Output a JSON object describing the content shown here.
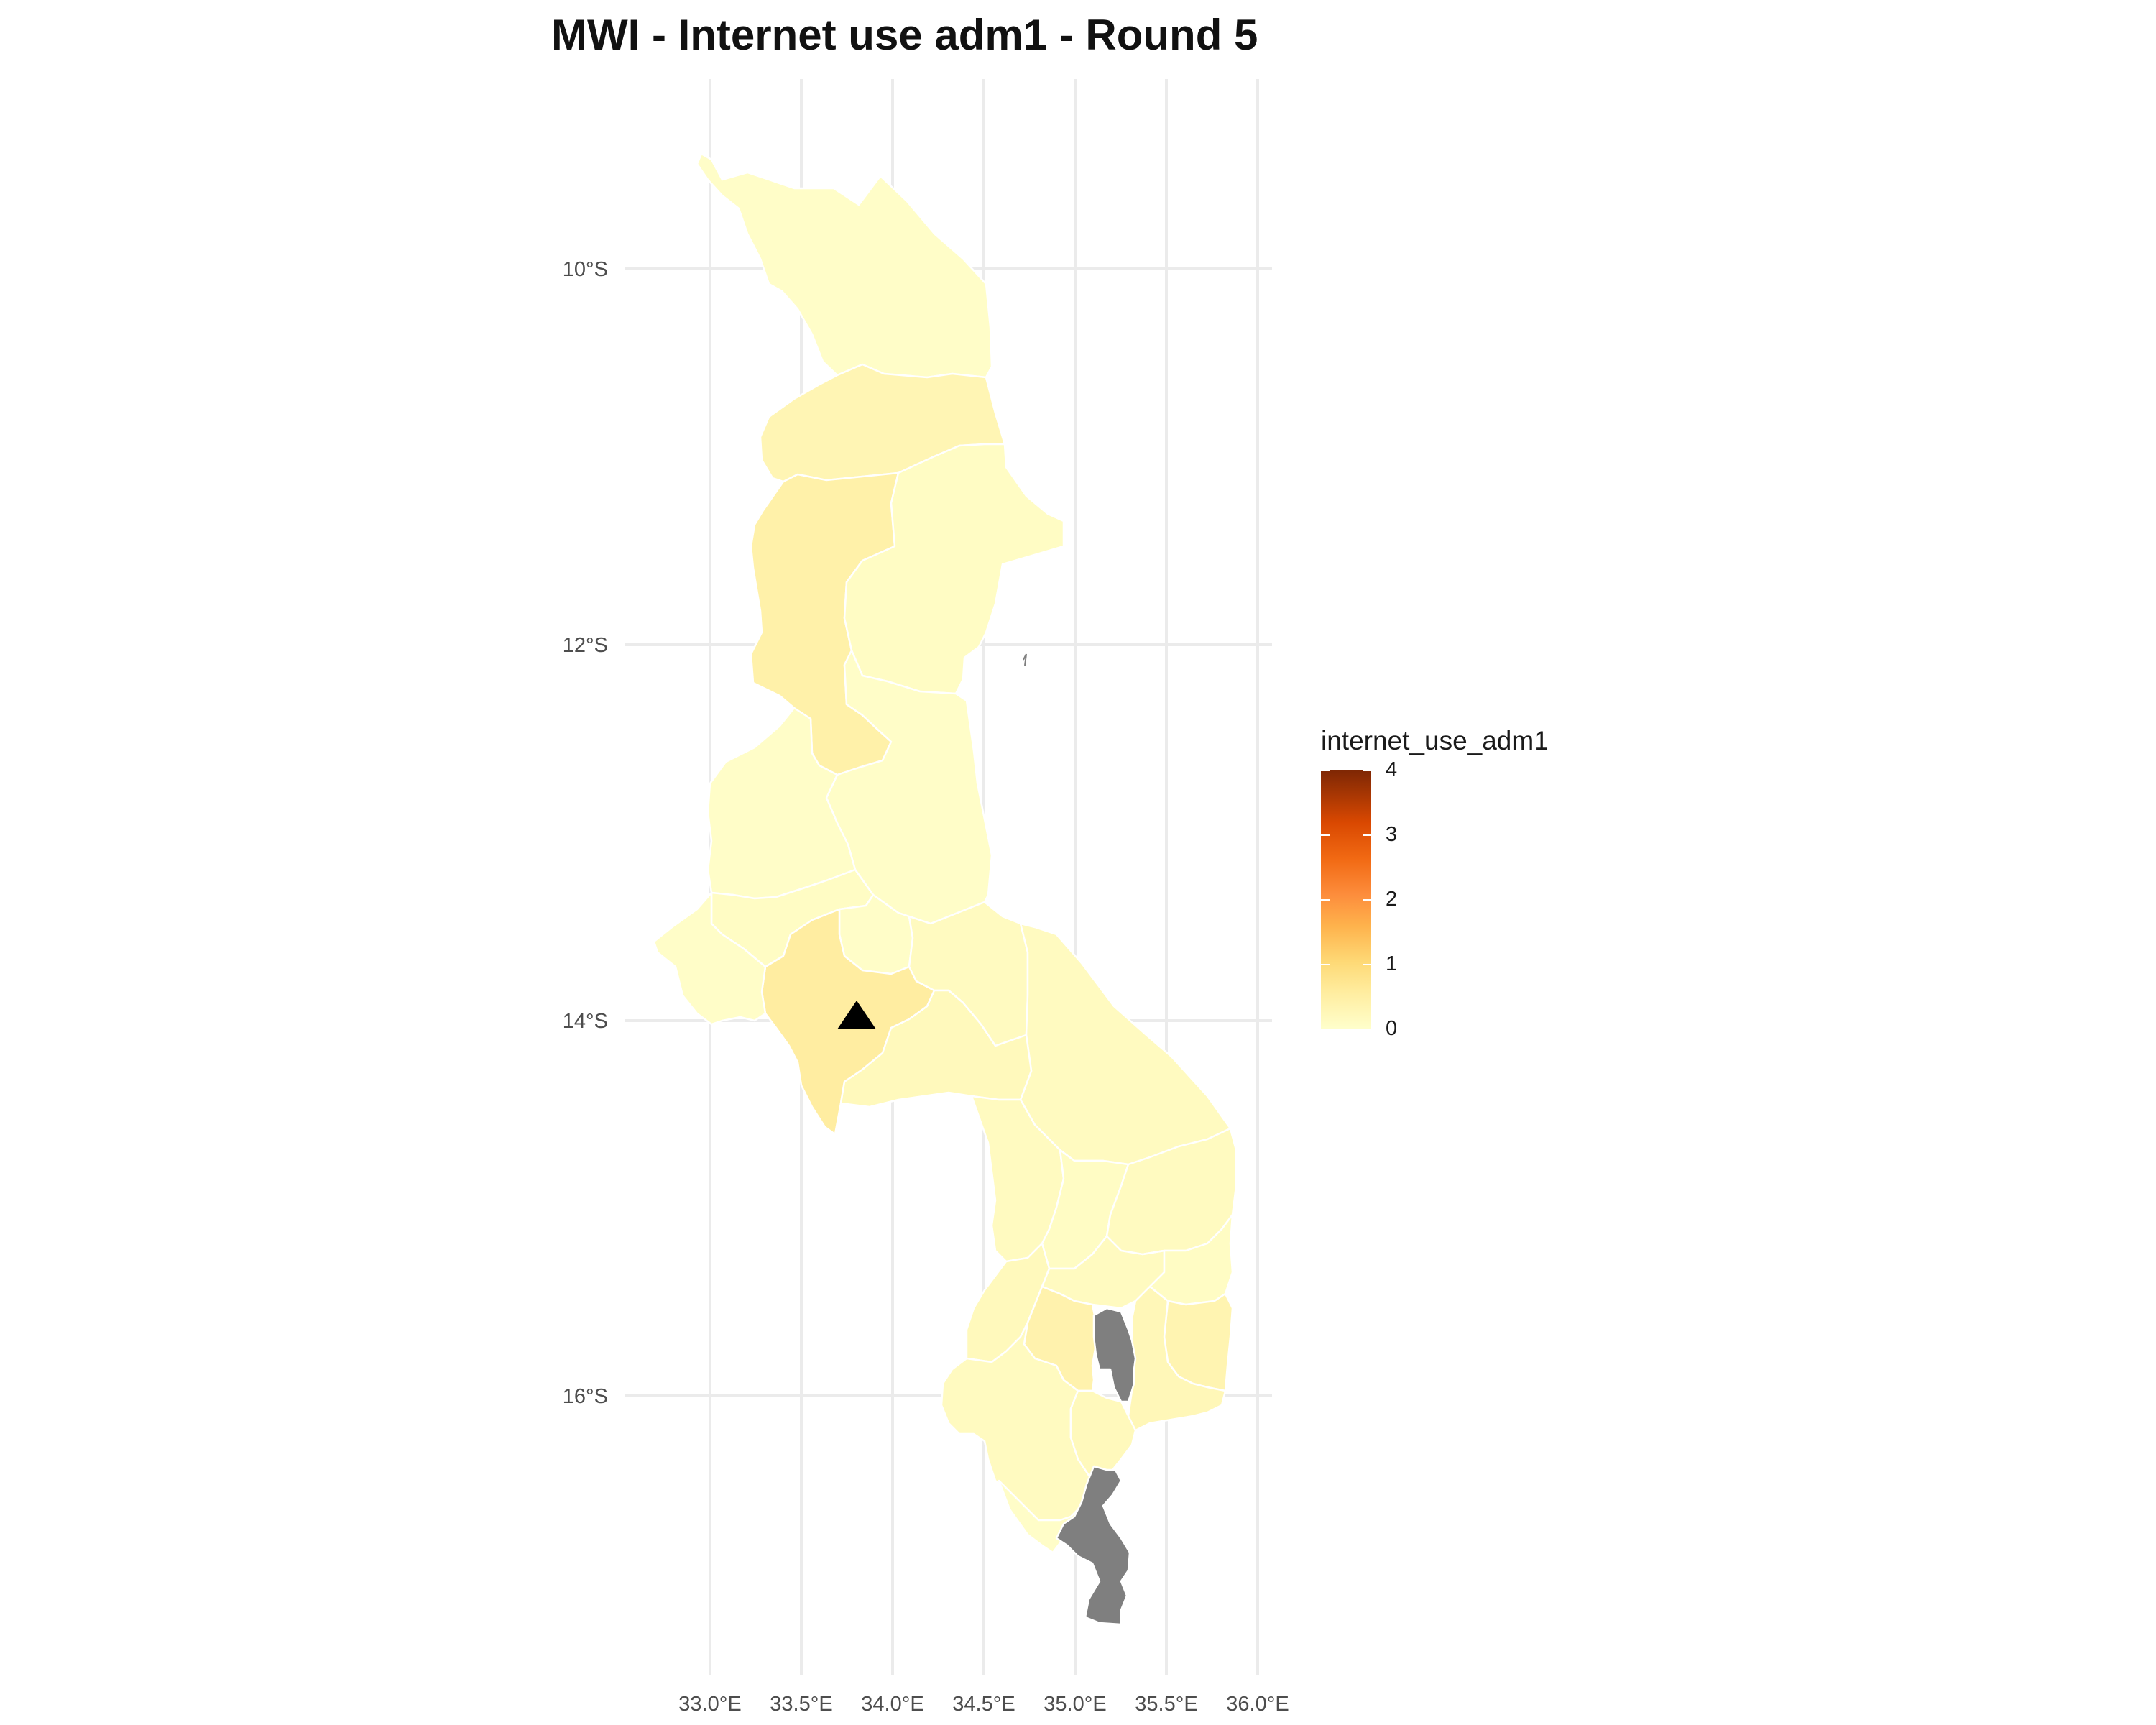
{
  "title": "MWI - Internet use adm1 - Round 5",
  "map": {
    "country": "MWI",
    "variable": "internet_use_adm1",
    "round": 5,
    "x_axis_ticks": [
      "33.0°E",
      "33.5°E",
      "34.0°E",
      "34.5°E",
      "35.0°E",
      "35.5°E",
      "36.0°E"
    ],
    "y_axis_ticks": [
      "10°S",
      "12°S",
      "14°S",
      "16°S"
    ],
    "grid": true,
    "missing_value_color": "#7f7f7f",
    "marker": {
      "shape": "triangle",
      "color": "#000000",
      "lon": 33.78,
      "lat": -13.97
    }
  },
  "legend": {
    "title": "internet_use_adm1",
    "labels": [
      "4",
      "3",
      "2",
      "1",
      "0"
    ],
    "min": 0,
    "max": 4,
    "low_color": "#ffffcc",
    "high_color": "#7f2704",
    "placement": "right"
  },
  "chart_data": {
    "type": "choropleth",
    "title": "MWI - Internet use adm1 - Round 5",
    "legend_title": "internet_use_adm1",
    "color_scale": {
      "min": 0,
      "max": 4,
      "palette": "YlOrBr"
    },
    "xlim": [
      32.7,
      36.1
    ],
    "ylim": [
      -17.2,
      -9.3
    ],
    "regions": [
      {
        "id": "north-1",
        "value": 0.05
      },
      {
        "id": "north-2",
        "value": 0.3
      },
      {
        "id": "north-west",
        "value": 0.45
      },
      {
        "id": "north-east",
        "value": 0.1
      },
      {
        "id": "center-1",
        "value": 0.05
      },
      {
        "id": "center-west-1",
        "value": 0.05
      },
      {
        "id": "center-2",
        "value": 0.1
      },
      {
        "id": "center-3",
        "value": 0.05
      },
      {
        "id": "lilongwe",
        "value": 0.55
      },
      {
        "id": "west-1",
        "value": 0.05
      },
      {
        "id": "center-4",
        "value": 0.15
      },
      {
        "id": "south-east-1",
        "value": 0.15
      },
      {
        "id": "south-1",
        "value": 0.2
      },
      {
        "id": "south-2",
        "value": 0.15
      },
      {
        "id": "south-3",
        "value": 0.1
      },
      {
        "id": "south-4",
        "value": 0.15
      },
      {
        "id": "south-5",
        "value": 0.2
      },
      {
        "id": "south-6",
        "value": 0.15
      },
      {
        "id": "south-7",
        "value": 0.1
      },
      {
        "id": "south-8",
        "value": 0.4
      },
      {
        "id": "south-9",
        "value": 0.35
      },
      {
        "id": "south-10",
        "value": 0.25
      },
      {
        "id": "south-11",
        "value": 0.15
      },
      {
        "id": "south-12",
        "value": 0.2
      },
      {
        "id": "south-13",
        "value": 0.05
      },
      {
        "id": "south-14",
        "value": null
      },
      {
        "id": "south-15",
        "value": null
      }
    ]
  }
}
